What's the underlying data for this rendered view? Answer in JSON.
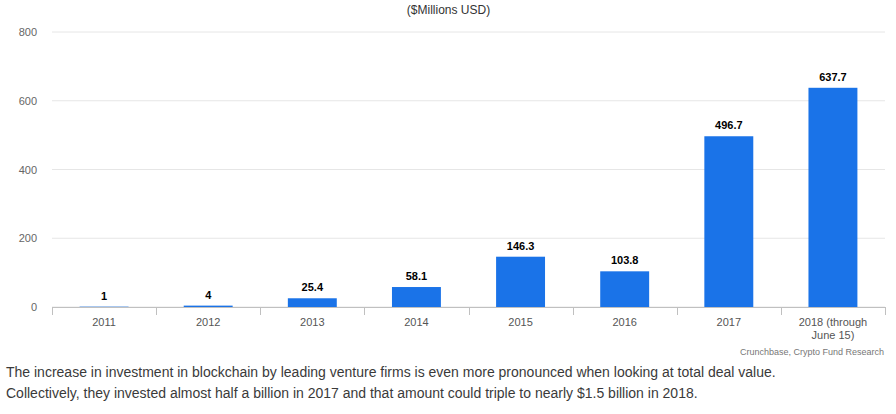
{
  "chart_data": {
    "type": "bar",
    "title": "($Millions USD)",
    "categories": [
      "2011",
      "2012",
      "2013",
      "2014",
      "2015",
      "2016",
      "2017",
      "2018 (through June 15)"
    ],
    "values": [
      1,
      4,
      25.4,
      58.1,
      146.3,
      103.8,
      496.7,
      637.7
    ],
    "color": "#1a73e8",
    "ylim": [
      0,
      800
    ],
    "yticks": [
      0,
      200,
      400,
      600,
      800
    ],
    "grid": true,
    "data_labels": true,
    "source": "Crunchbase, Crypto Fund Research",
    "caption": [
      "The increase in investment in blockchain by leading venture firms is even more pronounced when looking at total deal value.",
      "Collectively, they invested almost half a billion in 2017 and that amount could triple to nearly $1.5 billion in 2018."
    ]
  }
}
